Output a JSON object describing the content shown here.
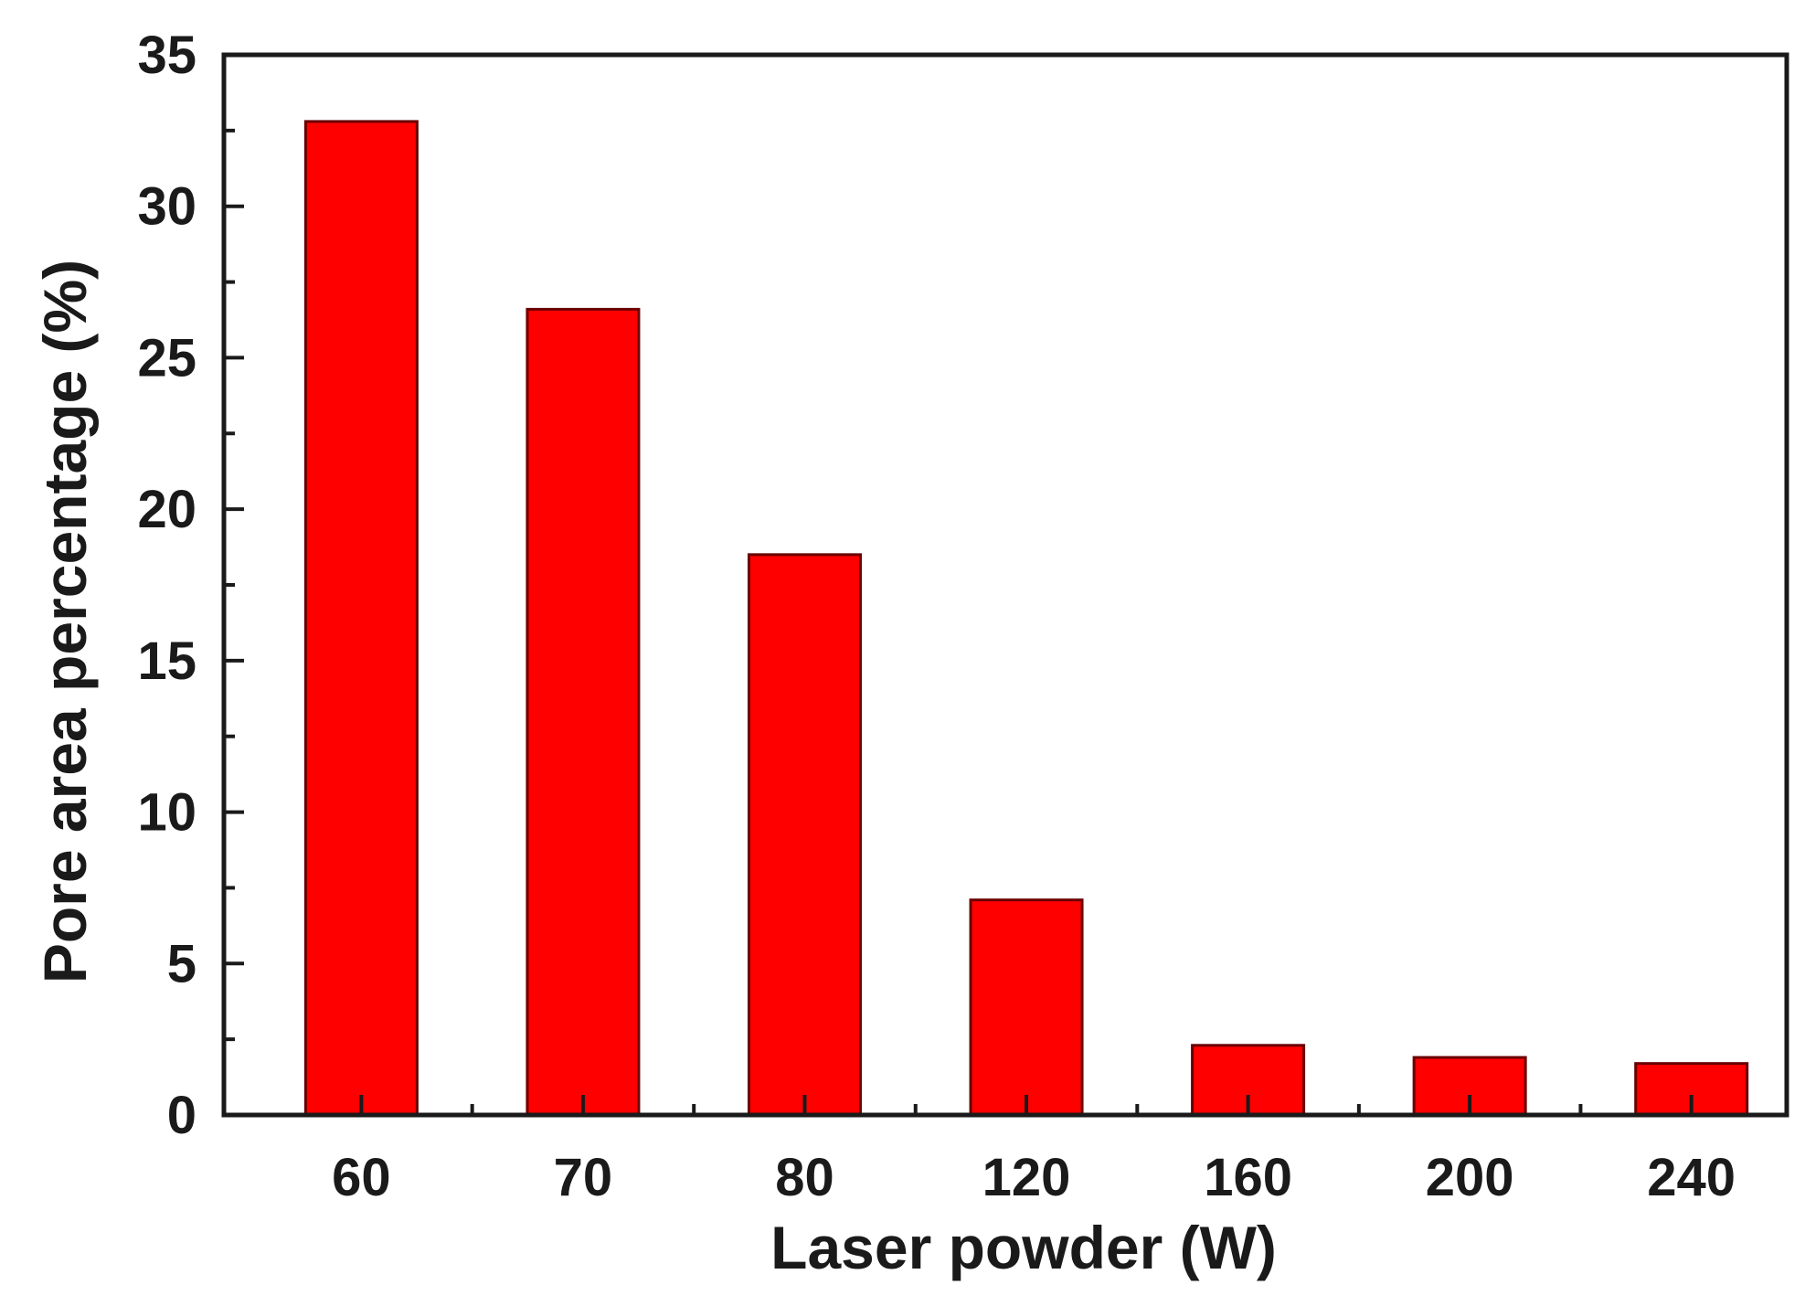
{
  "chart_data": {
    "type": "bar",
    "categories": [
      "60",
      "70",
      "80",
      "120",
      "160",
      "200",
      "240"
    ],
    "values": [
      32.8,
      26.6,
      18.5,
      7.1,
      2.3,
      1.9,
      1.7
    ],
    "xlabel": "Laser powder (W)",
    "ylabel": "Pore area percentage (%)",
    "ylim": [
      0,
      35
    ],
    "yticks": [
      "0",
      "5",
      "10",
      "15",
      "20",
      "25",
      "30",
      "35"
    ],
    "bar_color": "#ff0000",
    "bar_edge_color": "#6b0000",
    "grid": false,
    "legend": false
  }
}
